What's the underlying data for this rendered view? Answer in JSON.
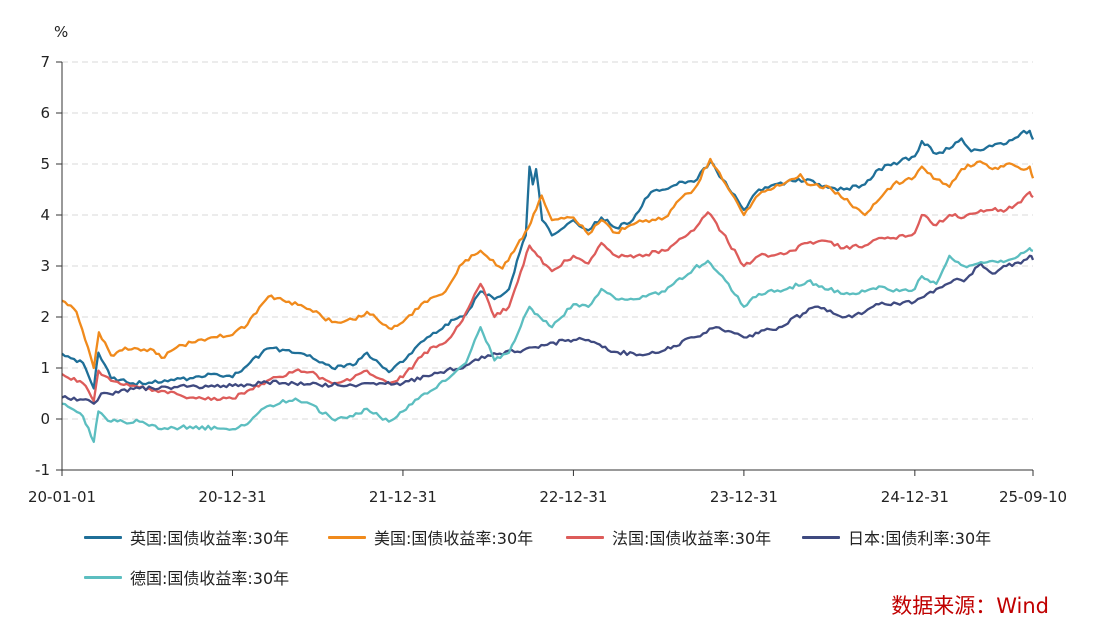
{
  "chart_data": {
    "type": "line",
    "unit_label": "%",
    "ylim": [
      -1,
      7
    ],
    "yticks": [
      -1,
      0,
      1,
      2,
      3,
      4,
      5,
      6,
      7
    ],
    "xlim": [
      "2020-01-01",
      "2025-09-10"
    ],
    "xticks": [
      {
        "date": "2020-01-01",
        "label": "20-01-01"
      },
      {
        "date": "2020-12-31",
        "label": "20-12-31"
      },
      {
        "date": "2021-12-31",
        "label": "21-12-31"
      },
      {
        "date": "2022-12-31",
        "label": "22-12-31"
      },
      {
        "date": "2023-12-31",
        "label": "23-12-31"
      },
      {
        "date": "2024-12-31",
        "label": "24-12-31"
      },
      {
        "date": "2025-09-10",
        "label": "25-09-10"
      }
    ],
    "grid": "horizontal-dashed",
    "legend_position": "bottom",
    "series": [
      {
        "name": "英国:国债收益率:30年",
        "color": "#1f6f98",
        "points": [
          [
            "2020-01-01",
            1.28
          ],
          [
            "2020-02-15",
            1.1
          ],
          [
            "2020-03-09",
            0.6
          ],
          [
            "2020-03-19",
            1.3
          ],
          [
            "2020-04-15",
            0.8
          ],
          [
            "2020-06-01",
            0.7
          ],
          [
            "2020-08-01",
            0.72
          ],
          [
            "2020-10-01",
            0.8
          ],
          [
            "2020-11-15",
            0.88
          ],
          [
            "2020-12-31",
            0.82
          ],
          [
            "2021-02-01",
            1.05
          ],
          [
            "2021-03-15",
            1.38
          ],
          [
            "2021-05-01",
            1.35
          ],
          [
            "2021-06-15",
            1.25
          ],
          [
            "2021-08-01",
            1.0
          ],
          [
            "2021-09-15",
            1.05
          ],
          [
            "2021-10-15",
            1.3
          ],
          [
            "2021-12-01",
            0.92
          ],
          [
            "2021-12-31",
            1.12
          ],
          [
            "2022-02-01",
            1.45
          ],
          [
            "2022-04-01",
            1.85
          ],
          [
            "2022-05-15",
            2.05
          ],
          [
            "2022-06-15",
            2.5
          ],
          [
            "2022-07-15",
            2.35
          ],
          [
            "2022-08-15",
            2.55
          ],
          [
            "2022-09-01",
            3.1
          ],
          [
            "2022-09-20",
            3.6
          ],
          [
            "2022-09-28",
            4.95
          ],
          [
            "2022-10-05",
            4.6
          ],
          [
            "2022-10-12",
            4.9
          ],
          [
            "2022-10-25",
            3.9
          ],
          [
            "2022-11-15",
            3.6
          ],
          [
            "2022-12-31",
            3.9
          ],
          [
            "2023-02-01",
            3.7
          ],
          [
            "2023-03-01",
            3.95
          ],
          [
            "2023-04-01",
            3.75
          ],
          [
            "2023-05-01",
            3.85
          ],
          [
            "2023-06-15",
            4.45
          ],
          [
            "2023-07-15",
            4.5
          ],
          [
            "2023-08-15",
            4.65
          ],
          [
            "2023-09-15",
            4.65
          ],
          [
            "2023-10-20",
            5.05
          ],
          [
            "2023-11-15",
            4.7
          ],
          [
            "2023-12-31",
            4.1
          ],
          [
            "2024-02-01",
            4.5
          ],
          [
            "2024-04-01",
            4.65
          ],
          [
            "2024-05-15",
            4.7
          ],
          [
            "2024-06-15",
            4.55
          ],
          [
            "2024-08-01",
            4.5
          ],
          [
            "2024-09-15",
            4.6
          ],
          [
            "2024-10-15",
            4.9
          ],
          [
            "2024-12-31",
            5.15
          ],
          [
            "2025-01-15",
            5.45
          ],
          [
            "2025-02-15",
            5.2
          ],
          [
            "2025-03-15",
            5.3
          ],
          [
            "2025-04-10",
            5.5
          ],
          [
            "2025-05-01",
            5.25
          ],
          [
            "2025-06-15",
            5.35
          ],
          [
            "2025-07-15",
            5.4
          ],
          [
            "2025-08-15",
            5.6
          ],
          [
            "2025-09-03",
            5.65
          ],
          [
            "2025-09-10",
            5.48
          ]
        ]
      },
      {
        "name": "美国:国债收益率:30年",
        "color": "#f08a1c",
        "points": [
          [
            "2020-01-01",
            2.32
          ],
          [
            "2020-02-01",
            2.1
          ],
          [
            "2020-03-09",
            1.0
          ],
          [
            "2020-03-20",
            1.7
          ],
          [
            "2020-04-15",
            1.25
          ],
          [
            "2020-05-15",
            1.4
          ],
          [
            "2020-07-15",
            1.35
          ],
          [
            "2020-08-01",
            1.2
          ],
          [
            "2020-09-15",
            1.45
          ],
          [
            "2020-11-15",
            1.6
          ],
          [
            "2020-12-31",
            1.65
          ],
          [
            "2021-02-01",
            1.85
          ],
          [
            "2021-03-18",
            2.4
          ],
          [
            "2021-05-01",
            2.3
          ],
          [
            "2021-06-15",
            2.15
          ],
          [
            "2021-08-01",
            1.9
          ],
          [
            "2021-09-15",
            1.95
          ],
          [
            "2021-10-15",
            2.1
          ],
          [
            "2021-12-01",
            1.78
          ],
          [
            "2021-12-31",
            1.9
          ],
          [
            "2022-02-15",
            2.3
          ],
          [
            "2022-04-01",
            2.5
          ],
          [
            "2022-05-01",
            3.0
          ],
          [
            "2022-06-15",
            3.3
          ],
          [
            "2022-08-01",
            2.95
          ],
          [
            "2022-09-01",
            3.4
          ],
          [
            "2022-10-01",
            3.85
          ],
          [
            "2022-10-24",
            4.38
          ],
          [
            "2022-11-15",
            3.9
          ],
          [
            "2022-12-31",
            3.95
          ],
          [
            "2023-02-01",
            3.62
          ],
          [
            "2023-03-01",
            3.9
          ],
          [
            "2023-04-01",
            3.65
          ],
          [
            "2023-05-15",
            3.85
          ],
          [
            "2023-07-15",
            3.95
          ],
          [
            "2023-08-15",
            4.3
          ],
          [
            "2023-09-15",
            4.5
          ],
          [
            "2023-10-20",
            5.1
          ],
          [
            "2023-11-15",
            4.7
          ],
          [
            "2023-12-31",
            4.0
          ],
          [
            "2024-02-01",
            4.4
          ],
          [
            "2024-04-30",
            4.8
          ],
          [
            "2024-05-15",
            4.6
          ],
          [
            "2024-07-01",
            4.55
          ],
          [
            "2024-09-15",
            4.0
          ],
          [
            "2024-10-15",
            4.3
          ],
          [
            "2024-11-15",
            4.6
          ],
          [
            "2024-12-31",
            4.75
          ],
          [
            "2025-01-15",
            4.95
          ],
          [
            "2025-02-15",
            4.7
          ],
          [
            "2025-03-15",
            4.55
          ],
          [
            "2025-04-10",
            4.9
          ],
          [
            "2025-05-20",
            5.05
          ],
          [
            "2025-06-15",
            4.9
          ],
          [
            "2025-07-15",
            5.0
          ],
          [
            "2025-08-15",
            4.9
          ],
          [
            "2025-09-03",
            4.95
          ],
          [
            "2025-09-10",
            4.72
          ]
        ]
      },
      {
        "name": "法国:国债收益率:30年",
        "color": "#dd5c5a",
        "points": [
          [
            "2020-01-01",
            0.88
          ],
          [
            "2020-02-15",
            0.7
          ],
          [
            "2020-03-09",
            0.35
          ],
          [
            "2020-03-19",
            0.95
          ],
          [
            "2020-04-15",
            0.75
          ],
          [
            "2020-06-15",
            0.62
          ],
          [
            "2020-08-01",
            0.55
          ],
          [
            "2020-10-01",
            0.42
          ],
          [
            "2020-12-31",
            0.4
          ],
          [
            "2021-02-01",
            0.55
          ],
          [
            "2021-03-15",
            0.75
          ],
          [
            "2021-05-15",
            0.95
          ],
          [
            "2021-06-15",
            0.92
          ],
          [
            "2021-08-01",
            0.7
          ],
          [
            "2021-09-15",
            0.8
          ],
          [
            "2021-10-15",
            0.95
          ],
          [
            "2021-12-01",
            0.7
          ],
          [
            "2021-12-31",
            0.82
          ],
          [
            "2022-02-15",
            1.3
          ],
          [
            "2022-04-01",
            1.5
          ],
          [
            "2022-05-01",
            1.85
          ],
          [
            "2022-06-15",
            2.65
          ],
          [
            "2022-07-15",
            2.0
          ],
          [
            "2022-08-15",
            2.2
          ],
          [
            "2022-09-28",
            3.4
          ],
          [
            "2022-10-15",
            3.2
          ],
          [
            "2022-11-15",
            2.9
          ],
          [
            "2022-12-31",
            3.2
          ],
          [
            "2023-02-01",
            3.05
          ],
          [
            "2023-03-01",
            3.45
          ],
          [
            "2023-04-01",
            3.2
          ],
          [
            "2023-05-15",
            3.2
          ],
          [
            "2023-07-15",
            3.3
          ],
          [
            "2023-09-15",
            3.7
          ],
          [
            "2023-10-15",
            4.05
          ],
          [
            "2023-11-15",
            3.65
          ],
          [
            "2023-12-31",
            3.0
          ],
          [
            "2024-02-01",
            3.2
          ],
          [
            "2024-04-01",
            3.25
          ],
          [
            "2024-05-15",
            3.45
          ],
          [
            "2024-06-15",
            3.5
          ],
          [
            "2024-08-01",
            3.35
          ],
          [
            "2024-09-15",
            3.4
          ],
          [
            "2024-10-15",
            3.55
          ],
          [
            "2024-11-15",
            3.55
          ],
          [
            "2024-12-31",
            3.65
          ],
          [
            "2025-01-15",
            4.0
          ],
          [
            "2025-02-15",
            3.8
          ],
          [
            "2025-03-15",
            4.0
          ],
          [
            "2025-04-15",
            3.95
          ],
          [
            "2025-05-15",
            4.05
          ],
          [
            "2025-06-15",
            4.1
          ],
          [
            "2025-07-15",
            4.1
          ],
          [
            "2025-08-15",
            4.25
          ],
          [
            "2025-09-03",
            4.45
          ],
          [
            "2025-09-10",
            4.35
          ]
        ]
      },
      {
        "name": "日本:国债利率:30年",
        "color": "#3f4a80",
        "points": [
          [
            "2020-01-01",
            0.42
          ],
          [
            "2020-02-15",
            0.38
          ],
          [
            "2020-03-09",
            0.3
          ],
          [
            "2020-03-25",
            0.5
          ],
          [
            "2020-05-01",
            0.52
          ],
          [
            "2020-06-15",
            0.6
          ],
          [
            "2020-08-15",
            0.62
          ],
          [
            "2020-10-15",
            0.64
          ],
          [
            "2020-12-31",
            0.65
          ],
          [
            "2021-03-15",
            0.72
          ],
          [
            "2021-06-15",
            0.68
          ],
          [
            "2021-09-15",
            0.66
          ],
          [
            "2021-12-31",
            0.7
          ],
          [
            "2022-03-15",
            0.9
          ],
          [
            "2022-05-15",
            1.05
          ],
          [
            "2022-07-01",
            1.25
          ],
          [
            "2022-09-15",
            1.35
          ],
          [
            "2022-12-20",
            1.55
          ],
          [
            "2022-12-31",
            1.55
          ],
          [
            "2023-02-01",
            1.55
          ],
          [
            "2023-03-15",
            1.35
          ],
          [
            "2023-05-15",
            1.25
          ],
          [
            "2023-07-15",
            1.35
          ],
          [
            "2023-09-15",
            1.6
          ],
          [
            "2023-11-01",
            1.8
          ],
          [
            "2023-12-31",
            1.6
          ],
          [
            "2024-03-15",
            1.8
          ],
          [
            "2024-05-31",
            2.2
          ],
          [
            "2024-08-05",
            2.0
          ],
          [
            "2024-09-15",
            2.1
          ],
          [
            "2024-10-15",
            2.25
          ],
          [
            "2024-12-31",
            2.3
          ],
          [
            "2025-02-15",
            2.55
          ],
          [
            "2025-03-31",
            2.75
          ],
          [
            "2025-04-15",
            2.7
          ],
          [
            "2025-05-21",
            3.05
          ],
          [
            "2025-06-15",
            2.85
          ],
          [
            "2025-07-15",
            3.0
          ],
          [
            "2025-08-15",
            3.05
          ],
          [
            "2025-09-03",
            3.2
          ],
          [
            "2025-09-10",
            3.12
          ]
        ]
      },
      {
        "name": "德国:国债收益率:30年",
        "color": "#5cbec0",
        "points": [
          [
            "2020-01-01",
            0.3
          ],
          [
            "2020-02-15",
            0.05
          ],
          [
            "2020-03-09",
            -0.45
          ],
          [
            "2020-03-19",
            0.15
          ],
          [
            "2020-04-15",
            -0.05
          ],
          [
            "2020-06-15",
            -0.05
          ],
          [
            "2020-08-01",
            -0.2
          ],
          [
            "2020-10-01",
            -0.15
          ],
          [
            "2020-12-31",
            -0.2
          ],
          [
            "2021-02-01",
            -0.1
          ],
          [
            "2021-03-15",
            0.25
          ],
          [
            "2021-05-15",
            0.4
          ],
          [
            "2021-06-15",
            0.3
          ],
          [
            "2021-08-01",
            0.0
          ],
          [
            "2021-09-15",
            0.05
          ],
          [
            "2021-10-15",
            0.2
          ],
          [
            "2021-12-01",
            -0.05
          ],
          [
            "2021-12-31",
            0.15
          ],
          [
            "2022-02-15",
            0.5
          ],
          [
            "2022-04-01",
            0.75
          ],
          [
            "2022-05-15",
            1.1
          ],
          [
            "2022-06-15",
            1.8
          ],
          [
            "2022-07-15",
            1.15
          ],
          [
            "2022-08-15",
            1.3
          ],
          [
            "2022-09-28",
            2.2
          ],
          [
            "2022-10-15",
            2.05
          ],
          [
            "2022-11-15",
            1.8
          ],
          [
            "2022-12-31",
            2.25
          ],
          [
            "2023-02-01",
            2.2
          ],
          [
            "2023-03-01",
            2.55
          ],
          [
            "2023-04-01",
            2.35
          ],
          [
            "2023-05-15",
            2.35
          ],
          [
            "2023-07-15",
            2.5
          ],
          [
            "2023-09-15",
            2.95
          ],
          [
            "2023-10-15",
            3.1
          ],
          [
            "2023-11-15",
            2.8
          ],
          [
            "2023-12-31",
            2.2
          ],
          [
            "2024-02-01",
            2.45
          ],
          [
            "2024-04-01",
            2.55
          ],
          [
            "2024-05-15",
            2.7
          ],
          [
            "2024-06-15",
            2.6
          ],
          [
            "2024-08-01",
            2.45
          ],
          [
            "2024-09-15",
            2.5
          ],
          [
            "2024-10-15",
            2.6
          ],
          [
            "2024-11-15",
            2.5
          ],
          [
            "2024-12-31",
            2.55
          ],
          [
            "2025-01-15",
            2.8
          ],
          [
            "2025-02-15",
            2.65
          ],
          [
            "2025-03-15",
            3.2
          ],
          [
            "2025-04-15",
            3.0
          ],
          [
            "2025-05-15",
            3.05
          ],
          [
            "2025-06-15",
            3.1
          ],
          [
            "2025-07-15",
            3.1
          ],
          [
            "2025-08-15",
            3.25
          ],
          [
            "2025-09-03",
            3.35
          ],
          [
            "2025-09-10",
            3.3
          ]
        ]
      }
    ],
    "source": "数据来源：Wind"
  }
}
